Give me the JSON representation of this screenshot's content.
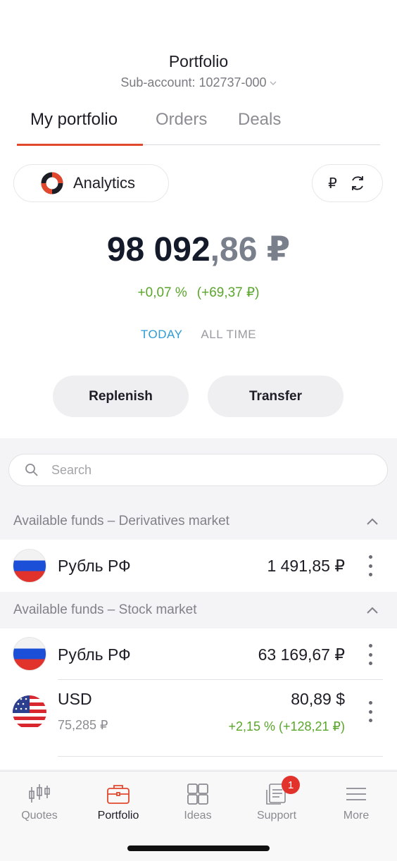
{
  "header": {
    "title": "Portfolio",
    "subaccount": "Sub-account: 102737-000"
  },
  "tabs": [
    {
      "label": "My portfolio",
      "active": true
    },
    {
      "label": "Orders",
      "active": false
    },
    {
      "label": "Deals",
      "active": false
    }
  ],
  "analytics": {
    "label": "Analytics"
  },
  "currency_switch": {
    "symbol": "₽",
    "icon": "refresh-icon"
  },
  "balance": {
    "integer": "98 092",
    "decimal": ",86 ₽",
    "change_percent": "+0,07 %",
    "change_value": "(+69,37 ₽)"
  },
  "period": {
    "today": "TODAY",
    "all_time": "ALL TIME",
    "selected": "TODAY"
  },
  "actions": {
    "replenish": "Replenish",
    "transfer": "Transfer"
  },
  "search": {
    "placeholder": "Search"
  },
  "sections": [
    {
      "title": "Available funds – Derivatives market",
      "items": [
        {
          "name": "Рубль РФ",
          "amount": "1 491,85 ₽",
          "flag": "russia-flag"
        }
      ]
    },
    {
      "title": "Available funds – Stock market",
      "items": [
        {
          "name": "Рубль РФ",
          "amount": "63 169,67 ₽",
          "flag": "russia-flag"
        },
        {
          "name": "USD",
          "amount": "80,89 $",
          "rate": "75,285 ₽",
          "change": "+2,15 % (+128,21 ₽)",
          "flag": "usa-flag"
        }
      ]
    }
  ],
  "tabbar": [
    {
      "label": "Quotes",
      "icon": "candlestick-icon",
      "active": false
    },
    {
      "label": "Portfolio",
      "icon": "briefcase-icon",
      "active": true
    },
    {
      "label": "Ideas",
      "icon": "grid-icon",
      "active": false
    },
    {
      "label": "Support",
      "icon": "chat-document-icon",
      "active": false,
      "badge": "1"
    },
    {
      "label": "More",
      "icon": "menu-icon",
      "active": false
    }
  ],
  "colors": {
    "accent": "#e2482e",
    "positive": "#5aa62a",
    "link": "#2e9bd4",
    "badge": "#e2322c"
  }
}
